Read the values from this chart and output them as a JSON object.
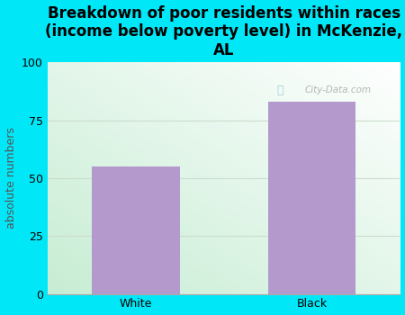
{
  "categories": [
    "White",
    "Black"
  ],
  "values": [
    55,
    83
  ],
  "bar_color": "#b399cc",
  "title": "Breakdown of poor residents within races\n(income below poverty level) in McKenzie,\nAL",
  "ylabel": "absolute numbers",
  "ylim": [
    0,
    100
  ],
  "yticks": [
    0,
    25,
    50,
    75,
    100
  ],
  "bg_outer": "#00e8f8",
  "grid_color": "#ccddcc",
  "title_fontsize": 12,
  "label_fontsize": 9,
  "tick_fontsize": 9,
  "bar_width": 0.5,
  "watermark": "City-Data.com"
}
